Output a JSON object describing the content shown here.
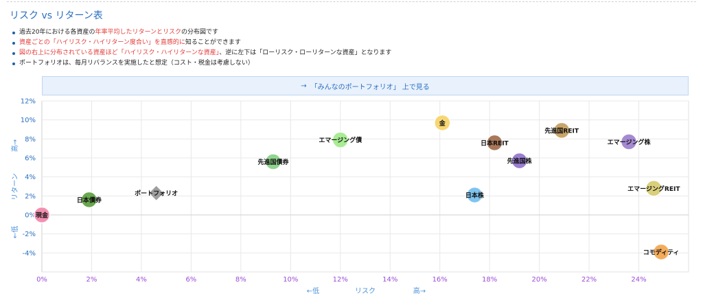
{
  "title": "リスク vs リターン表",
  "notes": [
    {
      "parts": [
        {
          "text": "過去20年における各資産の",
          "hl": false
        },
        {
          "text": "年率平均したリターンとリスク",
          "hl": true
        },
        {
          "text": "の分布図です",
          "hl": false
        }
      ]
    },
    {
      "parts": [
        {
          "text": "資産ごとの「ハイリスク・ハイリターン度合い」を直感的に",
          "hl": true
        },
        {
          "text": "知ることができます",
          "hl": false
        }
      ]
    },
    {
      "parts": [
        {
          "text": "図の右上に分布されている資産ほど「ハイリスク・ハイリターンな資産」",
          "hl": true
        },
        {
          "text": "、逆に左下は「ローリスク・ローリターンな資産」となります",
          "hl": false
        }
      ]
    },
    {
      "parts": [
        {
          "text": "ポートフォリオは、毎月リバランスを実施したと想定（コスト・税金は考慮しない）",
          "hl": false
        }
      ]
    }
  ],
  "link_button": {
    "arrow": "→",
    "label": "「みんなのポートフォリオ」 上で見る"
  },
  "chart_data": {
    "type": "scatter",
    "x_axis": {
      "min": 0,
      "max": 26,
      "ticks": [
        0,
        2,
        4,
        6,
        8,
        10,
        12,
        14,
        16,
        18,
        20,
        22,
        24
      ],
      "tick_labels": [
        "0%",
        "2%",
        "4%",
        "6%",
        "8%",
        "10%",
        "12%",
        "14%",
        "16%",
        "18%",
        "20%",
        "22%",
        "24%"
      ],
      "label_low": "←低",
      "label": "リスク",
      "label_high": "高→"
    },
    "y_axis": {
      "min": -6,
      "max": 12,
      "ticks": [
        -4,
        -2,
        0,
        2,
        4,
        6,
        8,
        10,
        12
      ],
      "tick_labels": [
        "-4%",
        "-2%",
        "0%",
        "2%",
        "4%",
        "6%",
        "8%",
        "10%",
        "12%"
      ],
      "label_high": "高→",
      "label": "リターン",
      "label_low": "←低"
    },
    "grid": true,
    "points": [
      {
        "name": "現金",
        "x": 0,
        "y": 0,
        "color": "#f38fb0",
        "shape": "circle"
      },
      {
        "name": "日本債券",
        "x": 1.9,
        "y": 1.6,
        "color": "#6aa84f",
        "shape": "circle"
      },
      {
        "name": "ポートフォリオ",
        "x": 4.6,
        "y": 2.3,
        "color": "#9e9e9e",
        "shape": "diamond"
      },
      {
        "name": "先進国債券",
        "x": 9.3,
        "y": 5.6,
        "color": "#8fd48f",
        "shape": "circle"
      },
      {
        "name": "エマージング債",
        "x": 12.0,
        "y": 7.9,
        "color": "#a8ec94",
        "shape": "circle"
      },
      {
        "name": "金",
        "x": 16.1,
        "y": 9.7,
        "color": "#f7d774",
        "shape": "circle"
      },
      {
        "name": "日本株",
        "x": 17.4,
        "y": 2.1,
        "color": "#7fc4ef",
        "shape": "circle"
      },
      {
        "name": "日本REIT",
        "x": 18.2,
        "y": 7.6,
        "color": "#a9785a",
        "shape": "circle"
      },
      {
        "name": "先進国株",
        "x": 19.2,
        "y": 5.7,
        "color": "#9b7fd1",
        "shape": "circle"
      },
      {
        "name": "先進国REIT",
        "x": 20.9,
        "y": 8.9,
        "color": "#c8a56b",
        "shape": "circle"
      },
      {
        "name": "エマージング株",
        "x": 23.6,
        "y": 7.7,
        "color": "#a58ad1",
        "shape": "circle"
      },
      {
        "name": "エマージングREIT",
        "x": 24.6,
        "y": 2.8,
        "color": "#d9cf7c",
        "shape": "circle"
      },
      {
        "name": "コモディティ",
        "x": 24.9,
        "y": -3.9,
        "color": "#f4ac5c",
        "shape": "circle"
      }
    ]
  }
}
